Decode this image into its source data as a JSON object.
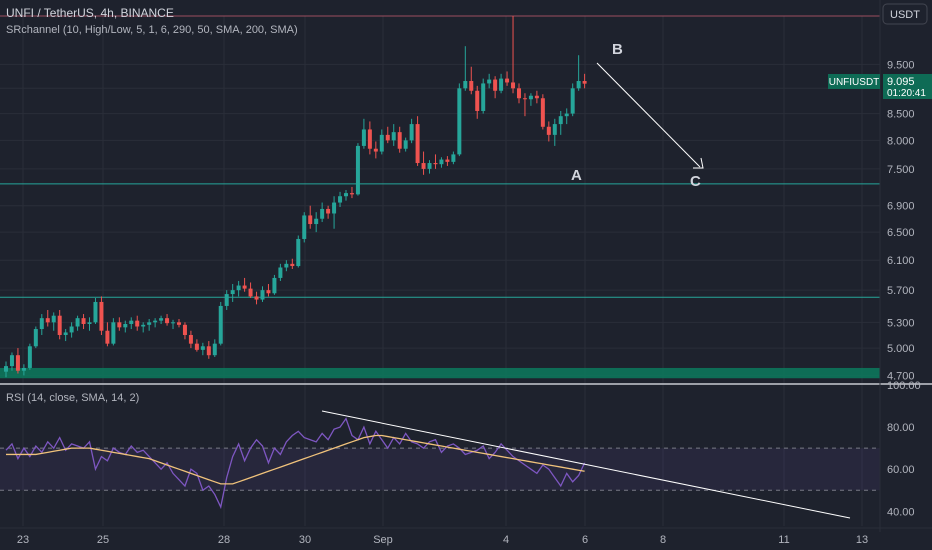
{
  "header": {
    "title": "UNFI / TetherUS, 4h, BINANCE",
    "indicator": "SRchannel (10, High/Low, 5, 1, 6, 290, 50, SMA, 200, SMA)",
    "currency_button": "USDT"
  },
  "rsi_header": "RSI (14, close, SMA, 14, 2)",
  "price_badge": {
    "symbol": "UNFIUSDT",
    "price": "9.095",
    "countdown": "01:20:41"
  },
  "annotations": {
    "a": "A",
    "b": "B",
    "c": "C"
  },
  "colors": {
    "background": "#1e222d",
    "up": "#26a69a",
    "down": "#ef5350",
    "rsi_line": "#7e57c2",
    "rsi_sma": "#f0c27b",
    "sr_line": "#26a69a",
    "resistance": "#9c4f60",
    "badge": "#0e6b55"
  },
  "price_axis_ticks": [
    "9.500",
    "9.000",
    "8.500",
    "8.000",
    "7.500",
    "6.900",
    "6.500",
    "6.100",
    "5.700",
    "5.300",
    "5.000",
    "4.700"
  ],
  "rsi_axis_ticks": [
    "100.00",
    "80.00",
    "60.00",
    "40.00"
  ],
  "x_axis_ticks": [
    "23",
    "25",
    "28",
    "30",
    "Sep",
    "4",
    "6",
    "8",
    "11",
    "13"
  ],
  "chart_data": [
    {
      "type": "candlestick",
      "title": "UNFI / TetherUS, 4h, BINANCE",
      "scale": "log",
      "ylim": [
        4.62,
        10.6
      ],
      "x_start": "Aug 22 12:00",
      "x_step_hours": 4,
      "ohlc": [
        [
          4.74,
          4.85,
          4.68,
          4.8
        ],
        [
          4.8,
          4.95,
          4.75,
          4.92
        ],
        [
          4.92,
          5.0,
          4.72,
          4.75
        ],
        [
          4.75,
          4.82,
          4.7,
          4.78
        ],
        [
          4.78,
          5.05,
          4.76,
          5.02
        ],
        [
          5.02,
          5.25,
          5.0,
          5.22
        ],
        [
          5.22,
          5.4,
          5.15,
          5.35
        ],
        [
          5.35,
          5.45,
          5.25,
          5.3
        ],
        [
          5.3,
          5.42,
          5.2,
          5.38
        ],
        [
          5.38,
          5.45,
          5.1,
          5.15
        ],
        [
          5.15,
          5.22,
          5.08,
          5.18
        ],
        [
          5.18,
          5.3,
          5.12,
          5.25
        ],
        [
          5.25,
          5.38,
          5.2,
          5.35
        ],
        [
          5.35,
          5.4,
          5.22,
          5.28
        ],
        [
          5.28,
          5.36,
          5.2,
          5.3
        ],
        [
          5.3,
          5.6,
          5.28,
          5.55
        ],
        [
          5.55,
          5.62,
          5.15,
          5.2
        ],
        [
          5.2,
          5.3,
          5.02,
          5.05
        ],
        [
          5.05,
          5.35,
          5.03,
          5.3
        ],
        [
          5.3,
          5.36,
          5.2,
          5.24
        ],
        [
          5.24,
          5.32,
          5.18,
          5.28
        ],
        [
          5.28,
          5.36,
          5.22,
          5.32
        ],
        [
          5.32,
          5.38,
          5.2,
          5.25
        ],
        [
          5.25,
          5.3,
          5.18,
          5.27
        ],
        [
          5.27,
          5.34,
          5.2,
          5.3
        ],
        [
          5.3,
          5.35,
          5.24,
          5.32
        ],
        [
          5.32,
          5.38,
          5.28,
          5.35
        ],
        [
          5.35,
          5.4,
          5.26,
          5.29
        ],
        [
          5.29,
          5.33,
          5.22,
          5.3
        ],
        [
          5.3,
          5.34,
          5.24,
          5.27
        ],
        [
          5.27,
          5.3,
          5.1,
          5.15
        ],
        [
          5.15,
          5.2,
          5.0,
          5.05
        ],
        [
          5.05,
          5.1,
          4.96,
          4.98
        ],
        [
          4.98,
          5.06,
          4.92,
          5.02
        ],
        [
          5.02,
          5.08,
          4.88,
          4.92
        ],
        [
          4.92,
          5.1,
          4.9,
          5.05
        ],
        [
          5.05,
          5.55,
          5.03,
          5.5
        ],
        [
          5.5,
          5.7,
          5.45,
          5.65
        ],
        [
          5.65,
          5.78,
          5.55,
          5.7
        ],
        [
          5.7,
          5.82,
          5.62,
          5.76
        ],
        [
          5.76,
          5.86,
          5.68,
          5.72
        ],
        [
          5.72,
          5.8,
          5.6,
          5.62
        ],
        [
          5.62,
          5.68,
          5.52,
          5.58
        ],
        [
          5.58,
          5.75,
          5.55,
          5.7
        ],
        [
          5.7,
          5.78,
          5.62,
          5.66
        ],
        [
          5.66,
          5.9,
          5.64,
          5.86
        ],
        [
          5.86,
          6.05,
          5.82,
          6.0
        ],
        [
          6.0,
          6.1,
          5.95,
          6.05
        ],
        [
          6.05,
          6.12,
          5.98,
          6.02
        ],
        [
          6.02,
          6.45,
          6.0,
          6.4
        ],
        [
          6.4,
          6.8,
          6.35,
          6.75
        ],
        [
          6.75,
          6.9,
          6.55,
          6.62
        ],
        [
          6.62,
          6.8,
          6.5,
          6.7
        ],
        [
          6.7,
          6.95,
          6.65,
          6.85
        ],
        [
          6.85,
          6.9,
          6.7,
          6.78
        ],
        [
          6.78,
          7.05,
          6.55,
          6.95
        ],
        [
          6.95,
          7.12,
          6.88,
          7.05
        ],
        [
          7.05,
          7.15,
          6.98,
          7.1
        ],
        [
          7.1,
          7.2,
          7.02,
          7.08
        ],
        [
          7.08,
          7.95,
          7.06,
          7.9
        ],
        [
          7.9,
          8.4,
          7.85,
          8.2
        ],
        [
          8.2,
          8.35,
          7.75,
          7.85
        ],
        [
          7.85,
          7.98,
          7.68,
          7.8
        ],
        [
          7.8,
          8.2,
          7.75,
          8.1
        ],
        [
          8.1,
          8.25,
          7.95,
          8.0
        ],
        [
          8.0,
          8.3,
          7.9,
          8.15
        ],
        [
          8.15,
          8.25,
          7.78,
          7.85
        ],
        [
          7.85,
          8.05,
          7.8,
          8.0
        ],
        [
          8.0,
          8.4,
          7.95,
          8.3
        ],
        [
          8.3,
          8.45,
          7.55,
          7.6
        ],
        [
          7.6,
          7.8,
          7.4,
          7.5
        ],
        [
          7.5,
          7.65,
          7.42,
          7.6
        ],
        [
          7.6,
          7.75,
          7.5,
          7.58
        ],
        [
          7.58,
          7.7,
          7.52,
          7.66
        ],
        [
          7.66,
          7.72,
          7.55,
          7.62
        ],
        [
          7.62,
          7.8,
          7.58,
          7.75
        ],
        [
          7.75,
          9.1,
          7.72,
          9.0
        ],
        [
          9.0,
          9.9,
          8.95,
          9.15
        ],
        [
          9.15,
          9.45,
          8.88,
          8.95
        ],
        [
          8.95,
          9.05,
          8.4,
          8.55
        ],
        [
          8.55,
          9.2,
          8.5,
          9.1
        ],
        [
          9.1,
          9.3,
          9.0,
          9.18
        ],
        [
          9.18,
          9.25,
          8.8,
          8.95
        ],
        [
          8.95,
          9.3,
          8.9,
          9.2
        ],
        [
          9.2,
          9.35,
          9.05,
          9.12
        ],
        [
          9.12,
          10.6,
          8.9,
          9.0
        ],
        [
          9.0,
          9.1,
          8.7,
          8.8
        ],
        [
          8.8,
          8.9,
          8.45,
          8.78
        ],
        [
          8.78,
          8.9,
          8.65,
          8.85
        ],
        [
          8.85,
          8.95,
          8.7,
          8.8
        ],
        [
          8.8,
          8.88,
          8.2,
          8.25
        ],
        [
          8.25,
          8.35,
          7.98,
          8.1
        ],
        [
          8.1,
          8.4,
          7.9,
          8.3
        ],
        [
          8.3,
          8.55,
          8.1,
          8.45
        ],
        [
          8.45,
          8.6,
          8.3,
          8.5
        ],
        [
          8.5,
          9.1,
          8.45,
          9.0
        ],
        [
          9.0,
          9.7,
          8.95,
          9.15
        ],
        [
          9.15,
          9.3,
          9.0,
          9.095
        ]
      ],
      "levels": [
        {
          "kind": "resistance",
          "price": 10.6
        },
        {
          "kind": "support",
          "price": 7.25
        },
        {
          "kind": "support",
          "price": 5.61
        },
        {
          "kind": "support-zone",
          "from": 4.67,
          "to": 4.78
        }
      ]
    },
    {
      "type": "line",
      "title": "RSI (14, close, SMA, 14, 2)",
      "ylim": [
        33,
        100
      ],
      "bands": [
        70,
        50
      ],
      "series": [
        {
          "values": [
            69,
            72,
            65,
            70,
            66,
            71,
            68,
            73,
            70,
            75,
            69,
            72,
            71,
            70,
            73,
            60,
            66,
            64,
            70,
            68,
            67,
            71,
            68,
            69,
            66,
            63,
            60,
            63,
            58,
            55,
            52,
            60,
            58,
            50,
            52,
            48,
            42,
            56,
            66,
            72,
            64,
            70,
            74,
            71,
            63,
            70,
            67,
            73,
            76,
            78,
            75,
            74,
            73,
            77,
            74,
            79,
            80,
            84,
            76,
            74,
            80,
            72,
            78,
            74,
            70,
            75,
            72,
            77,
            73,
            72,
            70,
            73,
            74,
            68,
            71,
            72,
            70,
            67,
            68,
            69,
            71,
            65,
            68,
            72,
            69,
            66,
            64,
            62,
            60,
            58,
            62,
            60,
            56,
            52,
            58,
            54,
            57,
            63
          ]
        },
        {
          "values": [
            67,
            67,
            67,
            67,
            67,
            67,
            67.5,
            68,
            68.5,
            69,
            69.5,
            70,
            70,
            70,
            70,
            69.5,
            69,
            68.5,
            68,
            67.5,
            67,
            66.5,
            66,
            65.5,
            65,
            64,
            63,
            62,
            61,
            60,
            59,
            58,
            57,
            56,
            55,
            54,
            53,
            53,
            53,
            54,
            55,
            56,
            57,
            58,
            59,
            60,
            61,
            62,
            63,
            64,
            65,
            66,
            67,
            68,
            69,
            70,
            71,
            72,
            73,
            74,
            75,
            75.5,
            76,
            76,
            75.5,
            75,
            74.5,
            74,
            73.5,
            73,
            72.5,
            72,
            71.5,
            71,
            70.5,
            70,
            69.5,
            69,
            68.5,
            68,
            67.5,
            67,
            66.5,
            66,
            65.5,
            65,
            64.5,
            64,
            63.5,
            63,
            62.5,
            62,
            61.5,
            61,
            60.5,
            60,
            59.5,
            59
          ]
        }
      ]
    }
  ]
}
